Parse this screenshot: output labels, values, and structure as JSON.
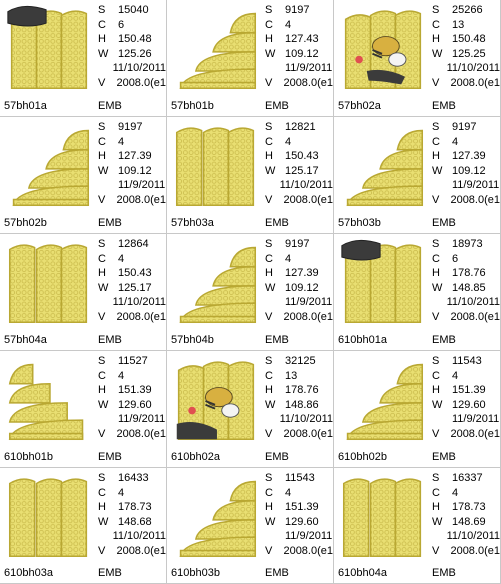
{
  "labels": {
    "stitches": "S",
    "colors": "C",
    "height": "H",
    "width": "W",
    "version": "V"
  },
  "colors": {
    "lace": "#e9df72",
    "lace_edge": "#b9a833",
    "lace_mesh": "#c8b94a",
    "dark_fill": "#3b3b3b",
    "accent_red": "#e05050"
  },
  "items": [
    {
      "name": "57bh01a",
      "type": "EMB",
      "s": "15040",
      "c": "6",
      "h": "150.48",
      "w": "125.26",
      "date": "11/10/2011",
      "v": "2008.0(e1",
      "shape": "rect-dark-top"
    },
    {
      "name": "57bh01b",
      "type": "EMB",
      "s": "9197",
      "c": "4",
      "h": "127.43",
      "w": "109.12",
      "date": "11/9/2011",
      "v": "2008.0(e1",
      "shape": "steps"
    },
    {
      "name": "57bh02a",
      "type": "EMB",
      "s": "25266",
      "c": "13",
      "h": "150.48",
      "w": "125.25",
      "date": "11/10/2011",
      "v": "2008.0(e1",
      "shape": "rect-bee"
    },
    {
      "name": "57bh02b",
      "type": "EMB",
      "s": "9197",
      "c": "4",
      "h": "127.39",
      "w": "109.12",
      "date": "11/9/2011",
      "v": "2008.0(e1",
      "shape": "steps"
    },
    {
      "name": "57bh03a",
      "type": "EMB",
      "s": "12821",
      "c": "4",
      "h": "150.43",
      "w": "125.17",
      "date": "11/10/2011",
      "v": "2008.0(e1",
      "shape": "rect"
    },
    {
      "name": "57bh03b",
      "type": "EMB",
      "s": "9197",
      "c": "4",
      "h": "127.39",
      "w": "109.12",
      "date": "11/9/2011",
      "v": "2008.0(e1",
      "shape": "steps"
    },
    {
      "name": "57bh04a",
      "type": "EMB",
      "s": "12864",
      "c": "4",
      "h": "150.43",
      "w": "125.17",
      "date": "11/10/2011",
      "v": "2008.0(e1",
      "shape": "rect"
    },
    {
      "name": "57bh04b",
      "type": "EMB",
      "s": "9197",
      "c": "4",
      "h": "127.39",
      "w": "109.12",
      "date": "11/9/2011",
      "v": "2008.0(e1",
      "shape": "steps"
    },
    {
      "name": "610bh01a",
      "type": "EMB",
      "s": "18973",
      "c": "6",
      "h": "178.76",
      "w": "148.85",
      "date": "11/10/2011",
      "v": "2008.0(e1",
      "shape": "rect-dark-top"
    },
    {
      "name": "610bh01b",
      "type": "EMB",
      "s": "11527",
      "c": "4",
      "h": "151.39",
      "w": "129.60",
      "date": "11/9/2011",
      "v": "2008.0(e1",
      "shape": "steps-left"
    },
    {
      "name": "610bh02a",
      "type": "EMB",
      "s": "32125",
      "c": "13",
      "h": "178.76",
      "w": "148.86",
      "date": "11/10/2011",
      "v": "2008.0(e1",
      "shape": "rect-bee-dark"
    },
    {
      "name": "610bh02b",
      "type": "EMB",
      "s": "11543",
      "c": "4",
      "h": "151.39",
      "w": "129.60",
      "date": "11/9/2011",
      "v": "2008.0(e1",
      "shape": "steps"
    },
    {
      "name": "610bh03a",
      "type": "EMB",
      "s": "16433",
      "c": "4",
      "h": "178.73",
      "w": "148.68",
      "date": "11/10/2011",
      "v": "2008.0(e1",
      "shape": "rect"
    },
    {
      "name": "610bh03b",
      "type": "EMB",
      "s": "11543",
      "c": "4",
      "h": "151.39",
      "w": "129.60",
      "date": "11/9/2011",
      "v": "2008.0(e1",
      "shape": "steps"
    },
    {
      "name": "610bh04a",
      "type": "EMB",
      "s": "16337",
      "c": "4",
      "h": "178.73",
      "w": "148.69",
      "date": "11/10/2011",
      "v": "2008.0(e1",
      "shape": "rect"
    }
  ]
}
